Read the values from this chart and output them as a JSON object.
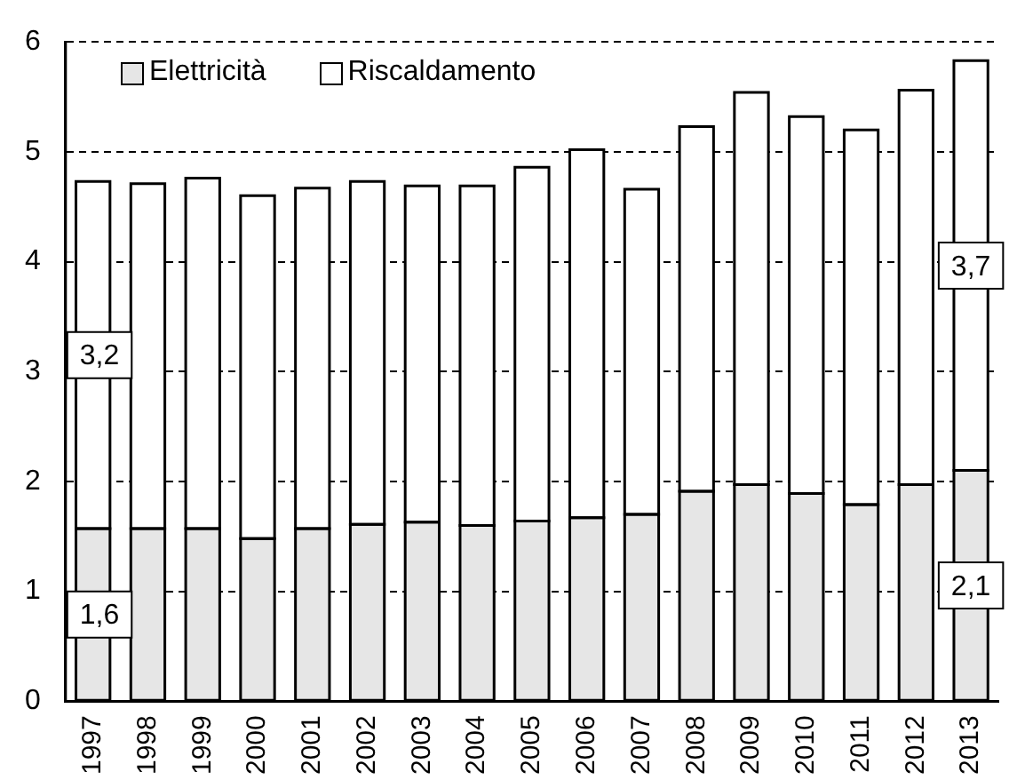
{
  "chart_data": {
    "type": "bar",
    "stacked": true,
    "categories": [
      "1997",
      "1998",
      "1999",
      "2000",
      "2001",
      "2002",
      "2003",
      "2004",
      "2005",
      "2006",
      "2007",
      "2008",
      "2009",
      "2010",
      "2011",
      "2012",
      "2013"
    ],
    "series": [
      {
        "name": "Elettricità",
        "color": "#e6e6e6",
        "values": [
          1.57,
          1.57,
          1.57,
          1.48,
          1.57,
          1.61,
          1.63,
          1.6,
          1.64,
          1.67,
          1.7,
          1.91,
          1.97,
          1.89,
          1.79,
          1.97,
          2.1
        ],
        "value_labels": [
          "1,6",
          null,
          null,
          null,
          null,
          null,
          null,
          null,
          null,
          null,
          null,
          null,
          null,
          null,
          null,
          null,
          "2,1"
        ]
      },
      {
        "name": "Riscaldamento",
        "color": "#ffffff",
        "values": [
          3.16,
          3.14,
          3.19,
          3.12,
          3.1,
          3.12,
          3.06,
          3.09,
          3.22,
          3.35,
          2.96,
          3.32,
          3.57,
          3.43,
          3.41,
          3.59,
          3.73
        ],
        "value_labels": [
          "3,2",
          null,
          null,
          null,
          null,
          null,
          null,
          null,
          null,
          null,
          null,
          null,
          null,
          null,
          null,
          null,
          "3,7"
        ]
      }
    ],
    "ylim": [
      0,
      6
    ],
    "yticks": [
      0,
      1,
      2,
      3,
      4,
      5,
      6
    ],
    "grid": "y",
    "legend": "top left"
  }
}
